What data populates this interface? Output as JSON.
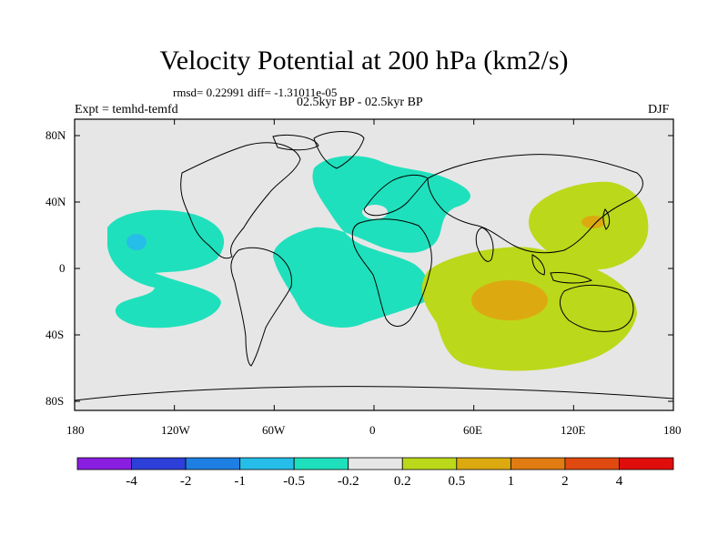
{
  "title": "Velocity Potential at 200 hPa (km2/s)",
  "stats": "rmsd= 0.22991 diff= -1.31011e-05",
  "periods": "02.5kyr BP - 02.5kyr BP",
  "expt": "Expt = temhd-temfd",
  "season": "DJF",
  "axes": {
    "lon_labels": [
      "180",
      "120W",
      "60W",
      "0",
      "60E",
      "120E",
      "180"
    ],
    "lat_labels": [
      "80N",
      "40N",
      "0",
      "40S",
      "80S"
    ]
  },
  "colorbar": {
    "labels": [
      "-4",
      "-2",
      "-1",
      "-0.5",
      "-0.2",
      "0.2",
      "0.5",
      "1",
      "2",
      "4"
    ],
    "colors": [
      "#8a1ee0",
      "#2d3fd9",
      "#1e7fe3",
      "#26bde8",
      "#1fe0bc",
      "#e6e6e6",
      "#bcd81a",
      "#dcaa10",
      "#e07c12",
      "#e04a10",
      "#e00d0d"
    ]
  },
  "legend_regions": [
    {
      "name": "central-pacific-negative",
      "color": "#1fe0bc"
    },
    {
      "name": "central-pacific-core",
      "color": "#26bde8"
    },
    {
      "name": "atlantic-europe-negative",
      "color": "#1fe0bc"
    },
    {
      "name": "indian-ocean-positive",
      "color": "#bcd81a"
    },
    {
      "name": "western-pacific-positive",
      "color": "#bcd81a"
    },
    {
      "name": "indian-ocean-core",
      "color": "#dcaa10"
    },
    {
      "name": "east-asia-core",
      "color": "#dcaa10"
    }
  ]
}
